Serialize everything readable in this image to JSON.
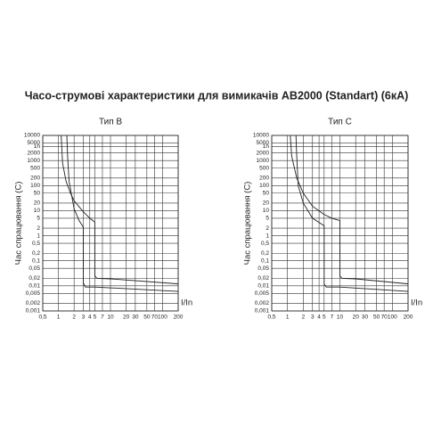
{
  "title": "Часо-струмові характеристики для вимикачів АВ2000 (Standart) (6кА)",
  "chart_data": [
    {
      "type": "line",
      "title": "Тип B",
      "xlabel": "I/In",
      "ylabel": "Час спрацювання (С)",
      "xscale": "log",
      "yscale": "log",
      "grid": true,
      "xlim": [
        0.5,
        200
      ],
      "ylim": [
        0.001,
        10000
      ],
      "xticks": [
        {
          "value": 0.5,
          "label": "0,5"
        },
        1,
        2,
        3,
        4,
        5,
        7,
        10,
        20,
        30,
        50,
        70,
        100,
        200
      ],
      "yticks": [
        10000,
        5000,
        {
          "value": 3600,
          "label": "1h"
        },
        2000,
        1000,
        500,
        200,
        100,
        50,
        20,
        10,
        5,
        2,
        1,
        {
          "value": 0.5,
          "label": "0,5"
        },
        {
          "value": 0.2,
          "label": "0,2"
        },
        {
          "value": 0.1,
          "label": "0,1"
        },
        {
          "value": 0.05,
          "label": "0,05"
        },
        {
          "value": 0.02,
          "label": "0,02"
        },
        {
          "value": 0.01,
          "label": "0,01"
        },
        {
          "value": 0.005,
          "label": "0,005"
        },
        {
          "value": 0.002,
          "label": "0,002"
        },
        {
          "value": 0.001,
          "label": "0,001"
        }
      ],
      "series": [
        {
          "color": "#222222",
          "x": [
            1.13,
            1.2,
            1.4,
            1.7,
            2,
            3,
            4,
            5,
            5,
            5.5,
            10,
            200
          ],
          "values": [
            10000,
            800,
            150,
            50,
            25,
            9,
            5,
            3.5,
            0.025,
            0.02,
            0.019,
            0.012
          ]
        },
        {
          "color": "#222222",
          "x": [
            1.45,
            1.5,
            1.6,
            2,
            2.5,
            3,
            3,
            3.3,
            5,
            200
          ],
          "values": [
            10000,
            1500,
            150,
            12,
            4,
            2.2,
            0.013,
            0.009,
            0.009,
            0.006
          ]
        }
      ]
    },
    {
      "type": "line",
      "title": "Тип C",
      "xlabel": "I/In",
      "ylabel": "Час спрацювання (С)",
      "xscale": "log",
      "yscale": "log",
      "grid": true,
      "xlim": [
        0.5,
        200
      ],
      "ylim": [
        0.001,
        10000
      ],
      "xticks": [
        {
          "value": 0.5,
          "label": "0,5"
        },
        1,
        2,
        3,
        4,
        5,
        7,
        10,
        20,
        30,
        50,
        70,
        100,
        200
      ],
      "yticks": [
        10000,
        5000,
        {
          "value": 3600,
          "label": "1h"
        },
        2000,
        1000,
        500,
        200,
        100,
        50,
        20,
        10,
        5,
        2,
        1,
        {
          "value": 0.5,
          "label": "0,5"
        },
        {
          "value": 0.2,
          "label": "0,2"
        },
        {
          "value": 0.1,
          "label": "0,1"
        },
        {
          "value": 0.05,
          "label": "0,05"
        },
        {
          "value": 0.02,
          "label": "0,02"
        },
        {
          "value": 0.01,
          "label": "0,01"
        },
        {
          "value": 0.005,
          "label": "0,005"
        },
        {
          "value": 0.002,
          "label": "0,002"
        },
        {
          "value": 0.001,
          "label": "0,001"
        }
      ],
      "series": [
        {
          "color": "#222222",
          "x": [
            1.13,
            1.2,
            1.5,
            2,
            3,
            5,
            7,
            10,
            10,
            11,
            20,
            200
          ],
          "values": [
            10000,
            1500,
            200,
            50,
            15,
            7,
            5,
            4,
            0.025,
            0.02,
            0.019,
            0.012
          ]
        },
        {
          "color": "#222222",
          "x": [
            1.45,
            1.5,
            1.6,
            2,
            3,
            5,
            5,
            5.5,
            10,
            200
          ],
          "values": [
            10000,
            1500,
            100,
            20,
            5,
            2.5,
            0.012,
            0.009,
            0.009,
            0.006
          ]
        }
      ]
    }
  ]
}
